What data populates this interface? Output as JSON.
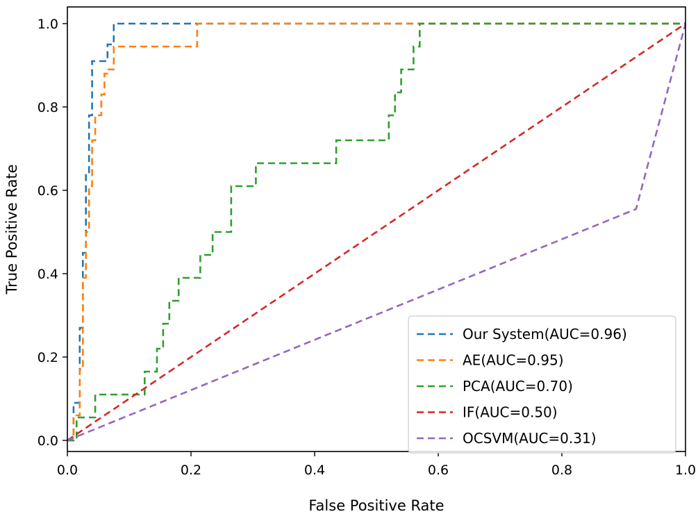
{
  "chart_data": {
    "type": "line",
    "title": "",
    "xlabel": "False Positive Rate",
    "ylabel": "True Positive Rate",
    "xlim": [
      0.0,
      1.0
    ],
    "ylim": [
      0.0,
      1.0
    ],
    "xticks": [
      "0.0",
      "0.2",
      "0.4",
      "0.6",
      "0.8",
      "1.0"
    ],
    "yticks": [
      "0.0",
      "0.2",
      "0.4",
      "0.6",
      "0.8",
      "1.0"
    ],
    "grid": false,
    "legend_position": "lower-right",
    "line_style": "dashed",
    "series": [
      {
        "name": "Our System(AUC=0.96)",
        "color": "#1f77b4",
        "x": [
          0.0,
          0.01,
          0.01,
          0.02,
          0.02,
          0.025,
          0.025,
          0.03,
          0.03,
          0.035,
          0.035,
          0.04,
          0.04,
          0.045,
          0.045,
          0.065,
          0.065,
          0.075,
          0.075,
          1.0
        ],
        "y": [
          0.0,
          0.0,
          0.09,
          0.09,
          0.27,
          0.27,
          0.45,
          0.45,
          0.64,
          0.64,
          0.78,
          0.78,
          0.91,
          0.91,
          0.91,
          0.91,
          0.95,
          0.95,
          1.0,
          1.0
        ]
      },
      {
        "name": "AE(AUC=0.95)",
        "color": "#ff7f0e",
        "x": [
          0.0,
          0.01,
          0.01,
          0.02,
          0.02,
          0.025,
          0.025,
          0.03,
          0.03,
          0.035,
          0.035,
          0.04,
          0.04,
          0.045,
          0.045,
          0.055,
          0.055,
          0.06,
          0.06,
          0.065,
          0.065,
          0.075,
          0.075,
          0.21,
          0.21,
          1.0
        ],
        "y": [
          0.0,
          0.0,
          0.06,
          0.06,
          0.17,
          0.17,
          0.39,
          0.39,
          0.5,
          0.5,
          0.61,
          0.61,
          0.72,
          0.72,
          0.78,
          0.78,
          0.83,
          0.83,
          0.88,
          0.88,
          0.89,
          0.89,
          0.945,
          0.945,
          1.0,
          1.0
        ]
      },
      {
        "name": "PCA(AUC=0.70)",
        "color": "#2ca02c",
        "x": [
          0.0,
          0.015,
          0.015,
          0.025,
          0.025,
          0.045,
          0.045,
          0.125,
          0.125,
          0.145,
          0.145,
          0.155,
          0.155,
          0.165,
          0.165,
          0.18,
          0.18,
          0.215,
          0.215,
          0.235,
          0.235,
          0.25,
          0.25,
          0.265,
          0.265,
          0.305,
          0.305,
          0.435,
          0.435,
          0.52,
          0.52,
          0.53,
          0.53,
          0.54,
          0.54,
          0.56,
          0.56,
          0.57,
          0.57,
          1.0
        ],
        "y": [
          0.0,
          0.0,
          0.055,
          0.055,
          0.055,
          0.055,
          0.11,
          0.11,
          0.165,
          0.165,
          0.22,
          0.22,
          0.28,
          0.28,
          0.335,
          0.335,
          0.39,
          0.39,
          0.445,
          0.445,
          0.5,
          0.5,
          0.5,
          0.5,
          0.61,
          0.61,
          0.665,
          0.665,
          0.72,
          0.72,
          0.78,
          0.78,
          0.835,
          0.835,
          0.89,
          0.89,
          0.945,
          0.945,
          1.0,
          1.0
        ]
      },
      {
        "name": "IF(AUC=0.50)",
        "color": "#d62728",
        "x": [
          0.0,
          1.0
        ],
        "y": [
          0.0,
          1.0
        ]
      },
      {
        "name": "OCSVM(AUC=0.31)",
        "color": "#9467bd",
        "x": [
          0.0,
          0.92,
          1.0
        ],
        "y": [
          0.0,
          0.555,
          1.0
        ]
      }
    ]
  }
}
